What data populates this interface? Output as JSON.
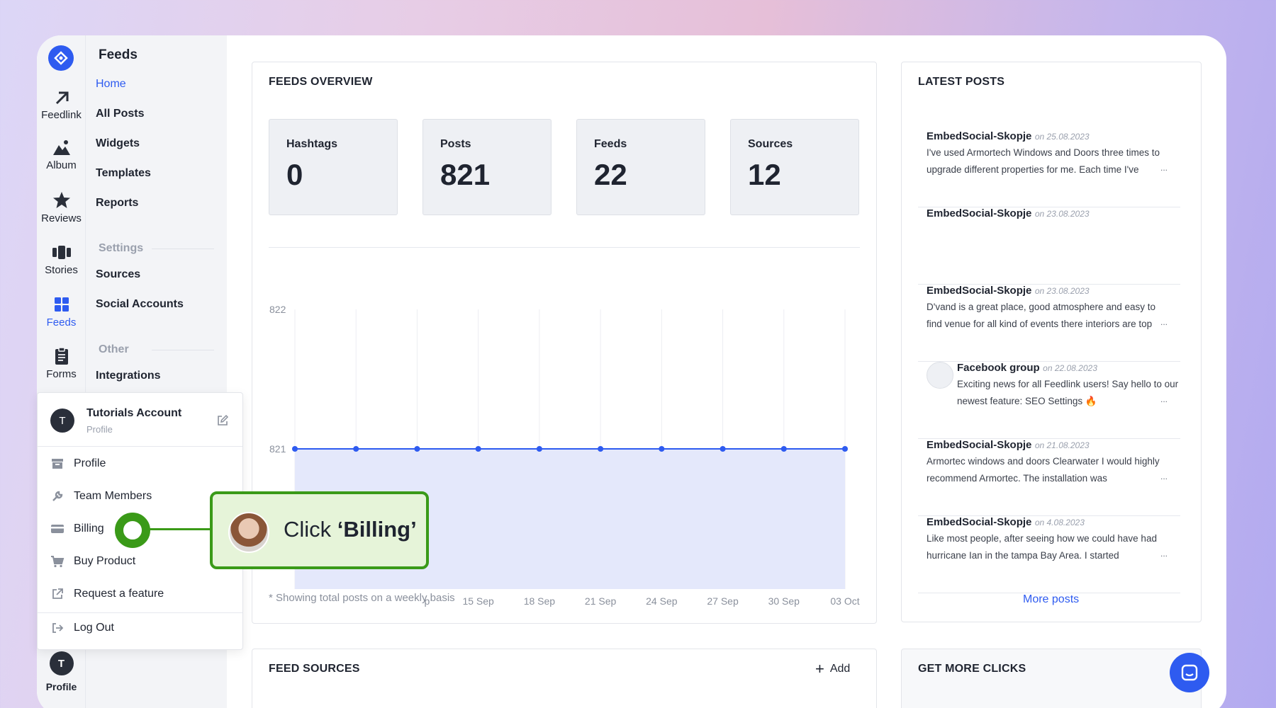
{
  "rail": {
    "items": [
      {
        "label": "Feedlink",
        "icon": "arrow-up-right-icon"
      },
      {
        "label": "Album",
        "icon": "mountain-icon"
      },
      {
        "label": "Reviews",
        "icon": "star-icon"
      },
      {
        "label": "Stories",
        "icon": "stories-icon"
      },
      {
        "label": "Feeds",
        "icon": "grid-icon",
        "active": true
      },
      {
        "label": "Forms",
        "icon": "clipboard-icon"
      }
    ],
    "profile_initial": "T",
    "profile_label": "Profile"
  },
  "submenu": {
    "title": "Feeds",
    "links": [
      "Home",
      "All Posts",
      "Widgets",
      "Templates",
      "Reports"
    ],
    "settings_label": "Settings",
    "settings_links": [
      "Sources",
      "Social Accounts"
    ],
    "other_label": "Other",
    "other_links": [
      "Integrations"
    ]
  },
  "dropdown": {
    "initial": "T",
    "account_name": "Tutorials Account",
    "account_sub": "Profile",
    "items": [
      "Profile",
      "Team Members",
      "Billing",
      "Buy Product",
      "Request a feature"
    ],
    "logout": "Log Out"
  },
  "overview": {
    "title": "FEEDS OVERVIEW",
    "stats": [
      {
        "label": "Hashtags",
        "value": "0"
      },
      {
        "label": "Posts",
        "value": "821"
      },
      {
        "label": "Feeds",
        "value": "22"
      },
      {
        "label": "Sources",
        "value": "12"
      }
    ],
    "note": "* Showing total posts on a weekly basis"
  },
  "chart_data": {
    "type": "area",
    "x": [
      "",
      "",
      "",
      "15 Sep",
      "18 Sep",
      "21 Sep",
      "24 Sep",
      "27 Sep",
      "30 Sep",
      "03 Oct"
    ],
    "x_tick_labels": [
      "p",
      "15 Sep",
      "18 Sep",
      "21 Sep",
      "24 Sep",
      "27 Sep",
      "30 Sep",
      "03 Oct"
    ],
    "values": [
      821,
      821,
      821,
      821,
      821,
      821,
      821,
      821,
      821,
      821
    ],
    "y_ticks": [
      822,
      821
    ],
    "ylim": [
      820,
      822
    ],
    "grid": true,
    "color": "#2e5bf0",
    "fill": "#e4e8fb"
  },
  "latest": {
    "title": "LATEST POSTS",
    "posts": [
      {
        "author": "EmbedSocial-Skopje",
        "date": "on 25.08.2023",
        "text": "I've used Armortech Windows and Doors three times to upgrade different properties for me. Each time I've",
        "dots": "...",
        "avatar": false
      },
      {
        "author": "EmbedSocial-Skopje",
        "date": "on 23.08.2023",
        "text": "",
        "dots": "",
        "avatar": false
      },
      {
        "author": "EmbedSocial-Skopje",
        "date": "on 23.08.2023",
        "text": "D'vand is a great place, good atmosphere and easy to find venue for all kind of events there interiors are top",
        "dots": "...",
        "avatar": false
      },
      {
        "author": "Facebook group",
        "date": "on 22.08.2023",
        "text": "Exciting news for all Feedlink users! Say hello to our newest feature: SEO Settings 🔥",
        "dots": "...",
        "avatar": true
      },
      {
        "author": "EmbedSocial-Skopje",
        "date": "on 21.08.2023",
        "text": "Armortec windows and doors Clearwater I would highly recommend Armortec. The installation was",
        "dots": "...",
        "avatar": false
      },
      {
        "author": "EmbedSocial-Skopje",
        "date": "on 4.08.2023",
        "text": "Like most people, after seeing how we could have had hurricane Ian in the tampa Bay Area. I started",
        "dots": "...",
        "avatar": false
      }
    ],
    "more": "More posts"
  },
  "sources": {
    "title": "FEED SOURCES",
    "add": "Add"
  },
  "clicks": {
    "title": "GET MORE CLICKS"
  },
  "callout": {
    "prefix": "Click ",
    "target": "‘Billing’"
  },
  "colors": {
    "accent": "#2e5bf0",
    "callout_green": "#3a9a18",
    "callout_bg": "#e6f4d9"
  }
}
